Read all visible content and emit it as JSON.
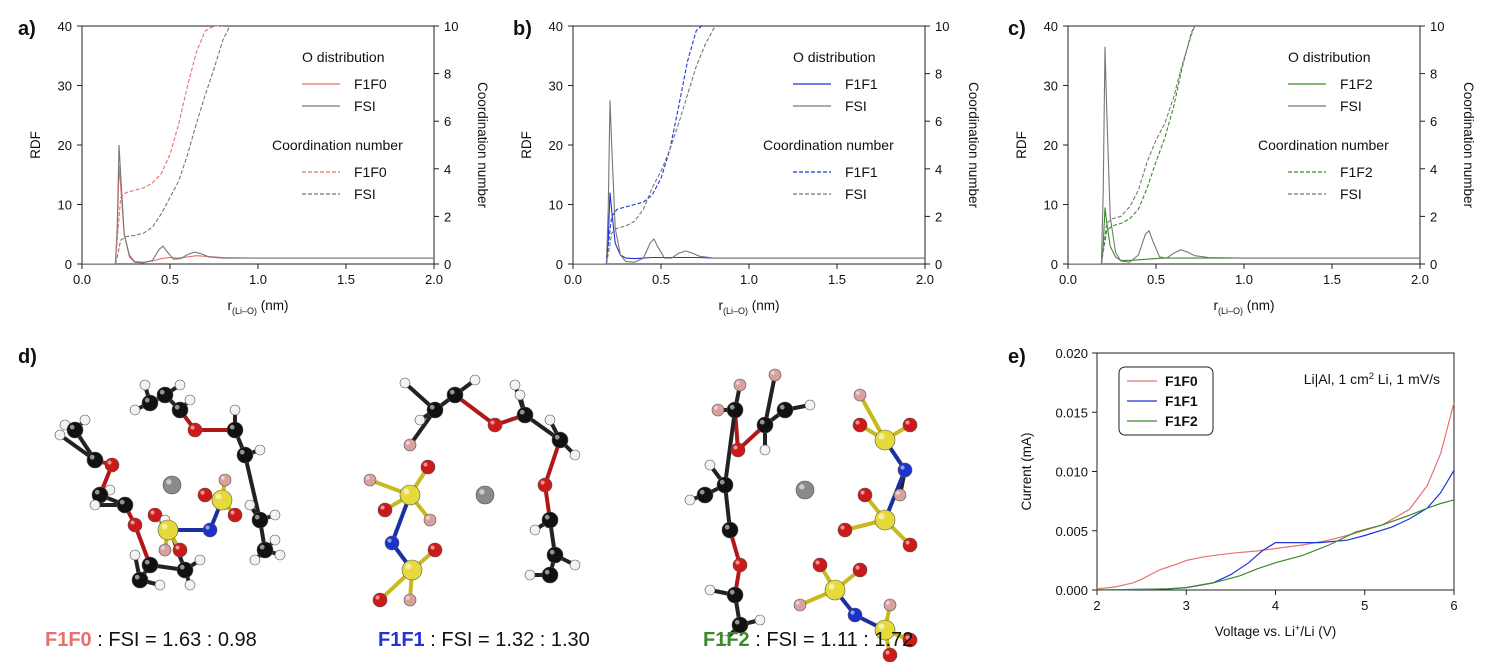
{
  "colors": {
    "F1F0": "#e8716e",
    "F1F1": "#1f35d8",
    "F1F2": "#3a8a2a",
    "FSI": "#777777",
    "atoms": {
      "C": "#111111",
      "H": "#f2f2f2",
      "O": "#cc1a1a",
      "F": "#d9a0a0",
      "S": "#e6d93a",
      "N": "#1a33cc",
      "Li": "#8a8a8a"
    }
  },
  "panels": [
    {
      "id": "a",
      "letter": "a)",
      "target": "F1F0"
    },
    {
      "id": "b",
      "letter": "b)",
      "target": "F1F1"
    },
    {
      "id": "c",
      "letter": "c)",
      "target": "F1F2"
    }
  ],
  "rdf_axes": {
    "ylabel_left": "RDF",
    "ylabel_right": "Coordination number",
    "xlabel_main": "r",
    "xlabel_sub": "(Li–O)",
    "xlabel_unit": " (nm)",
    "xticks": [
      "0.0",
      "0.5",
      "1.0",
      "1.5",
      "2.0"
    ],
    "yticks_left": [
      "0",
      "10",
      "20",
      "30",
      "40"
    ],
    "yticks_right": [
      "0",
      "2",
      "4",
      "6",
      "8",
      "10"
    ],
    "legend_title_1": "O distribution",
    "legend_title_2": "Coordination number",
    "fsi_label": "FSI"
  },
  "panel_e": {
    "letter": "e)",
    "ylabel": "Current (mA)",
    "xlabel_pre": "Voltage vs. Li",
    "xlabel_sup": "+",
    "xlabel_post": "/Li (V)",
    "condition_pre": "Li|Al, 1 cm",
    "condition_sup": "2",
    "condition_post": " Li, 1 mV/s",
    "legend": [
      "F1F0",
      "F1F1",
      "F1F2"
    ],
    "xticks": [
      "2",
      "3",
      "4",
      "5",
      "6"
    ],
    "yticks": [
      "0.000",
      "0.005",
      "0.010",
      "0.015",
      "0.020"
    ]
  },
  "panel_d": {
    "letter": "d)",
    "captions": [
      {
        "name": "F1F0",
        "rest": " : FSI = 1.63 : 0.98"
      },
      {
        "name": "F1F1",
        "rest": " : FSI = 1.32 : 1.30"
      },
      {
        "name": "F1F2",
        "rest": " : FSI = 1.11 : 1.72"
      }
    ]
  },
  "chart_data": [
    {
      "type": "line",
      "panel": "a",
      "xlim": [
        0,
        2.0
      ],
      "ylim_left": [
        0,
        40
      ],
      "ylim_right": [
        0,
        10
      ],
      "series": [
        {
          "name": "F1F0",
          "kind": "rdf",
          "x": [
            0.0,
            0.19,
            0.2,
            0.21,
            0.22,
            0.24,
            0.27,
            0.3,
            0.35,
            0.4,
            0.45,
            0.5,
            0.55,
            0.6,
            0.65,
            0.7,
            0.8,
            1.0,
            1.5,
            2.0
          ],
          "y": [
            0,
            0,
            5,
            16.5,
            13,
            5,
            1.5,
            0.4,
            0.3,
            0.5,
            0.9,
            1.1,
            1.0,
            1.2,
            1.4,
            1.3,
            1.1,
            1.0,
            1.0,
            1.0
          ]
        },
        {
          "name": "FSI",
          "kind": "rdf",
          "x": [
            0.0,
            0.19,
            0.2,
            0.21,
            0.22,
            0.24,
            0.27,
            0.3,
            0.35,
            0.4,
            0.44,
            0.46,
            0.48,
            0.52,
            0.56,
            0.6,
            0.64,
            0.68,
            0.72,
            0.8,
            1.0,
            1.5,
            2.0
          ],
          "y": [
            0,
            0,
            6,
            20,
            15,
            5,
            1.2,
            0.3,
            0.2,
            0.6,
            2.5,
            3.0,
            2.2,
            0.8,
            0.9,
            1.6,
            2.0,
            1.7,
            1.2,
            1.0,
            1.0,
            1.0,
            1.0
          ]
        },
        {
          "name": "F1F0",
          "kind": "cn",
          "x": [
            0.19,
            0.2,
            0.22,
            0.25,
            0.3,
            0.35,
            0.4,
            0.45,
            0.5,
            0.55,
            0.6,
            0.65,
            0.7,
            0.75,
            0.8
          ],
          "y": [
            0,
            1.0,
            2.8,
            3.0,
            3.1,
            3.2,
            3.4,
            3.8,
            4.6,
            5.9,
            7.5,
            8.9,
            9.8,
            10.0,
            10.0
          ]
        },
        {
          "name": "FSI",
          "kind": "cn",
          "x": [
            0.19,
            0.2,
            0.22,
            0.25,
            0.3,
            0.35,
            0.4,
            0.45,
            0.5,
            0.55,
            0.6,
            0.65,
            0.7,
            0.75,
            0.8,
            0.84
          ],
          "y": [
            0,
            0.3,
            1.0,
            1.15,
            1.2,
            1.3,
            1.55,
            2.1,
            2.8,
            3.5,
            4.6,
            5.9,
            7.1,
            8.2,
            9.4,
            10.0
          ]
        }
      ]
    },
    {
      "type": "line",
      "panel": "b",
      "xlim": [
        0,
        2.0
      ],
      "ylim_left": [
        0,
        40
      ],
      "ylim_right": [
        0,
        10
      ],
      "series": [
        {
          "name": "F1F1",
          "kind": "rdf",
          "x": [
            0.0,
            0.19,
            0.2,
            0.21,
            0.22,
            0.24,
            0.27,
            0.3,
            0.35,
            0.4,
            0.45,
            0.5,
            0.55,
            0.6,
            0.65,
            0.7,
            0.8,
            1.0,
            1.5,
            2.0
          ],
          "y": [
            0,
            0,
            4,
            12,
            9,
            3.5,
            1.5,
            1.0,
            0.9,
            1.0,
            1.1,
            1.1,
            1.1,
            1.1,
            1.1,
            1.1,
            1.0,
            1.0,
            1.0,
            1.0
          ]
        },
        {
          "name": "FSI",
          "kind": "rdf",
          "x": [
            0.0,
            0.19,
            0.2,
            0.21,
            0.22,
            0.24,
            0.27,
            0.3,
            0.35,
            0.4,
            0.44,
            0.46,
            0.48,
            0.52,
            0.56,
            0.6,
            0.64,
            0.68,
            0.72,
            0.8,
            1.0,
            1.5,
            2.0
          ],
          "y": [
            0,
            0,
            9,
            27.5,
            20,
            6,
            1.5,
            0.4,
            0.3,
            1.0,
            3.6,
            4.2,
            3.0,
            1.0,
            1.0,
            1.8,
            2.2,
            1.8,
            1.3,
            1.0,
            1.0,
            1.0,
            1.0
          ]
        },
        {
          "name": "F1F1",
          "kind": "cn",
          "x": [
            0.19,
            0.2,
            0.22,
            0.25,
            0.3,
            0.35,
            0.4,
            0.45,
            0.5,
            0.55,
            0.6,
            0.65,
            0.7,
            0.73
          ],
          "y": [
            0,
            0.8,
            2.0,
            2.3,
            2.4,
            2.5,
            2.6,
            2.9,
            3.6,
            4.8,
            6.6,
            8.5,
            9.8,
            10.0
          ]
        },
        {
          "name": "FSI",
          "kind": "cn",
          "x": [
            0.19,
            0.2,
            0.22,
            0.25,
            0.3,
            0.35,
            0.4,
            0.45,
            0.5,
            0.55,
            0.6,
            0.65,
            0.7,
            0.75,
            0.8,
            0.82
          ],
          "y": [
            0,
            0.4,
            1.3,
            1.5,
            1.6,
            1.8,
            2.3,
            3.2,
            3.9,
            4.8,
            5.9,
            7.1,
            8.3,
            9.2,
            9.9,
            10.0
          ]
        }
      ]
    },
    {
      "type": "line",
      "panel": "c",
      "xlim": [
        0,
        2.0
      ],
      "ylim_left": [
        0,
        40
      ],
      "ylim_right": [
        0,
        10
      ],
      "series": [
        {
          "name": "F1F2",
          "kind": "rdf",
          "x": [
            0.0,
            0.19,
            0.2,
            0.21,
            0.22,
            0.24,
            0.27,
            0.3,
            0.35,
            0.4,
            0.45,
            0.5,
            0.55,
            0.6,
            0.65,
            0.7,
            0.8,
            1.0,
            1.5,
            2.0
          ],
          "y": [
            0,
            0,
            3,
            9.5,
            7,
            3,
            1.2,
            0.6,
            0.6,
            0.7,
            0.8,
            0.9,
            1.0,
            1.0,
            1.0,
            1.0,
            1.0,
            1.0,
            1.0,
            1.0
          ]
        },
        {
          "name": "FSI",
          "kind": "rdf",
          "x": [
            0.0,
            0.19,
            0.2,
            0.21,
            0.22,
            0.24,
            0.27,
            0.3,
            0.35,
            0.4,
            0.44,
            0.46,
            0.48,
            0.52,
            0.56,
            0.6,
            0.64,
            0.68,
            0.72,
            0.8,
            1.0,
            1.5,
            2.0
          ],
          "y": [
            0,
            0,
            12,
            36.5,
            26,
            8,
            2,
            0.5,
            0.3,
            1.5,
            5.0,
            5.6,
            4.0,
            1.2,
            1.0,
            1.8,
            2.4,
            2.0,
            1.4,
            1.1,
            1.0,
            1.0,
            1.0
          ]
        },
        {
          "name": "F1F2",
          "kind": "cn",
          "x": [
            0.19,
            0.2,
            0.22,
            0.25,
            0.3,
            0.35,
            0.4,
            0.45,
            0.5,
            0.55,
            0.6,
            0.65,
            0.7,
            0.72
          ],
          "y": [
            0,
            0.5,
            1.4,
            1.6,
            1.7,
            1.9,
            2.3,
            3.2,
            4.3,
            5.3,
            6.6,
            8.3,
            9.7,
            10.0
          ]
        },
        {
          "name": "FSI",
          "kind": "cn",
          "x": [
            0.19,
            0.2,
            0.22,
            0.25,
            0.3,
            0.35,
            0.4,
            0.45,
            0.5,
            0.55,
            0.6,
            0.65,
            0.7,
            0.72
          ],
          "y": [
            0,
            0.6,
            1.7,
            1.9,
            2.0,
            2.4,
            3.1,
            4.3,
            5.2,
            5.9,
            7.0,
            8.4,
            9.6,
            10.0
          ]
        }
      ]
    },
    {
      "type": "line",
      "panel": "e",
      "xlim": [
        2,
        6
      ],
      "ylim": [
        0,
        0.02
      ],
      "series": [
        {
          "name": "F1F0",
          "x": [
            2.0,
            2.2,
            2.4,
            2.5,
            2.7,
            2.9,
            3.0,
            3.2,
            3.5,
            3.8,
            4.0,
            4.3,
            4.6,
            4.9,
            5.2,
            5.5,
            5.7,
            5.85,
            6.0
          ],
          "y": [
            0.0001,
            0.00025,
            0.0006,
            0.0009,
            0.0017,
            0.0022,
            0.0025,
            0.0028,
            0.0031,
            0.0033,
            0.0035,
            0.0038,
            0.0042,
            0.0048,
            0.0055,
            0.0068,
            0.0088,
            0.0115,
            0.0158
          ]
        },
        {
          "name": "F1F1",
          "x": [
            2.0,
            2.5,
            2.8,
            3.0,
            3.3,
            3.5,
            3.7,
            3.85,
            4.0,
            4.2,
            4.5,
            4.8,
            5.0,
            5.3,
            5.5,
            5.7,
            5.85,
            6.0
          ],
          "y": [
            0.0,
            5e-05,
            0.0001,
            0.0002,
            0.0006,
            0.0013,
            0.0023,
            0.0033,
            0.004,
            0.004,
            0.004,
            0.0042,
            0.0046,
            0.0053,
            0.006,
            0.0069,
            0.0082,
            0.0101
          ]
        },
        {
          "name": "F1F2",
          "x": [
            2.0,
            2.5,
            2.8,
            3.0,
            3.3,
            3.6,
            3.8,
            4.0,
            4.3,
            4.6,
            4.9,
            5.2,
            5.5,
            5.7,
            5.85,
            6.0
          ],
          "y": [
            0.0,
            5e-05,
            0.0001,
            0.0002,
            0.0006,
            0.0012,
            0.0018,
            0.0023,
            0.0029,
            0.0038,
            0.0049,
            0.0055,
            0.0063,
            0.0069,
            0.0073,
            0.0076
          ]
        }
      ]
    }
  ]
}
